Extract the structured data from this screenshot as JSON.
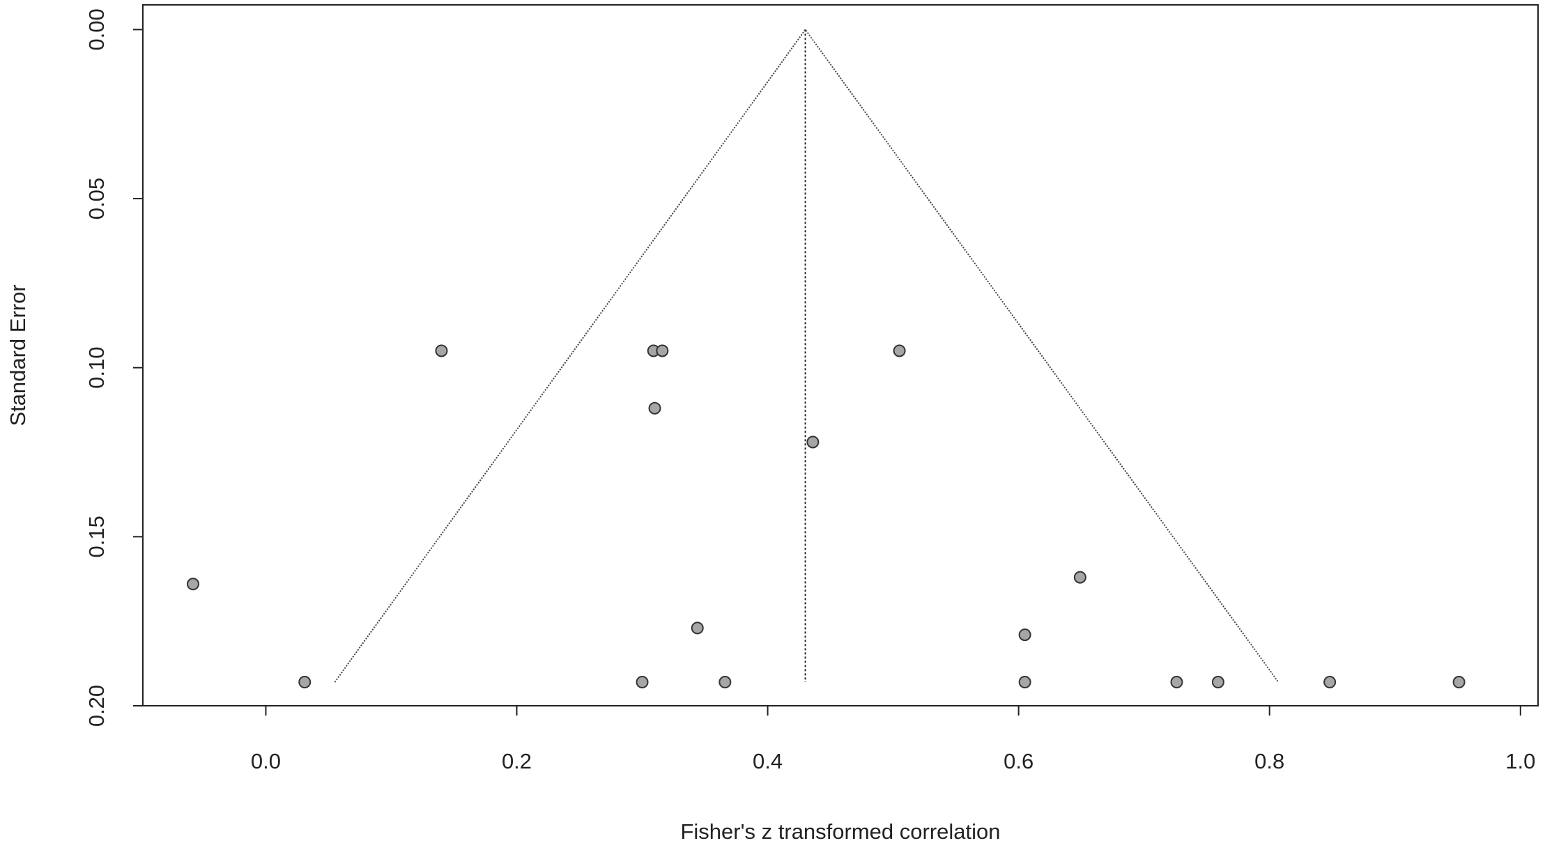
{
  "chart_data": {
    "type": "scatter",
    "x_label": "Fisher's z transformed correlation",
    "y_label": "Standard Error",
    "x": [
      0.14,
      0.309,
      0.316,
      0.505,
      0.31,
      0.436,
      -0.058,
      0.649,
      0.344,
      0.605,
      0.031,
      0.3,
      0.366,
      0.605,
      0.726,
      0.759,
      0.848,
      0.951
    ],
    "values": [
      0.095,
      0.095,
      0.095,
      0.095,
      0.112,
      0.122,
      0.164,
      0.162,
      0.177,
      0.179,
      0.193,
      0.193,
      0.193,
      0.193,
      0.193,
      0.193,
      0.193,
      0.193
    ],
    "color": "#a6a6a6",
    "xlim": [
      -0.098,
      1.014
    ],
    "ylim": [
      -0.0073,
      0.2
    ],
    "y_reversed": true,
    "xticks": [
      {
        "value": 0,
        "label": "0.0"
      },
      {
        "value": 0.2,
        "label": "0.2"
      },
      {
        "value": 0.4,
        "label": "0.4"
      },
      {
        "value": 0.6,
        "label": "0.6"
      },
      {
        "value": 0.8,
        "label": "0.8"
      },
      {
        "value": 1.0,
        "label": "1.0"
      }
    ],
    "yticks": [
      {
        "value": 0,
        "label": "0.00"
      },
      {
        "value": 0.05,
        "label": "0.05"
      },
      {
        "value": 0.1,
        "label": "0.10"
      },
      {
        "value": 0.15,
        "label": "0.15"
      },
      {
        "value": 0.2,
        "label": "0.20"
      }
    ],
    "funnel": {
      "center": 0.43,
      "se_max": 0.193,
      "left": 0.055,
      "right": 0.807
    }
  }
}
